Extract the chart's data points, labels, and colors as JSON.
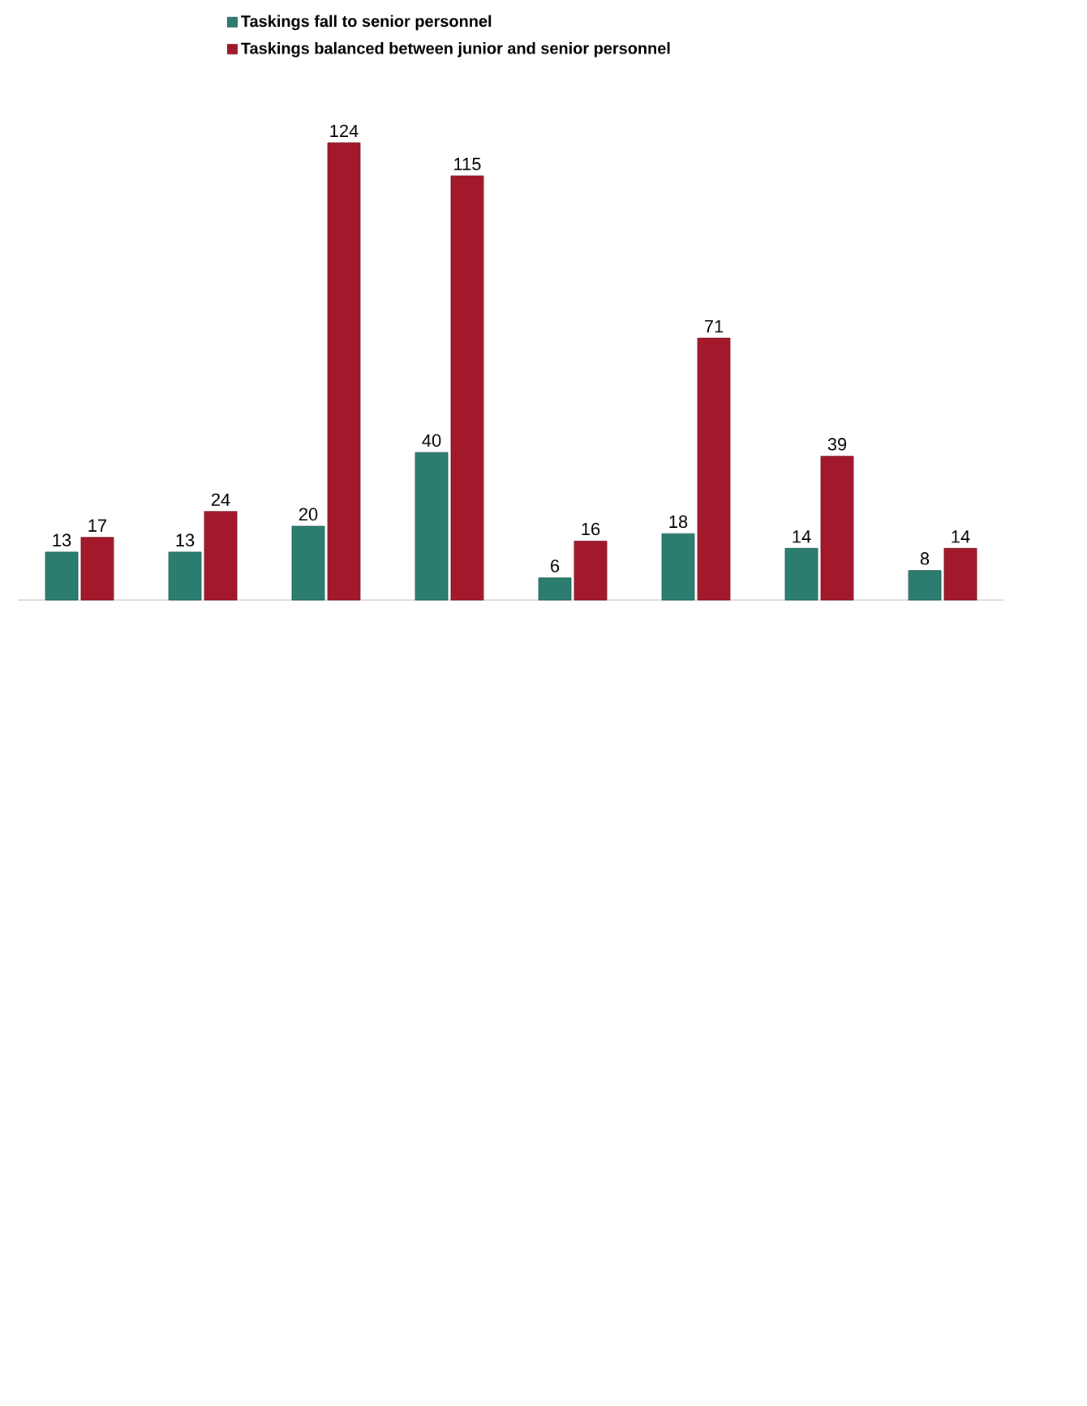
{
  "chart_data": {
    "type": "bar",
    "categories": [
      null,
      null,
      null,
      null,
      null,
      null,
      null,
      null
    ],
    "series": [
      {
        "name": "Taskings fall to senior personnel",
        "color": "#2b7d70",
        "values": [
          13,
          13,
          20,
          40,
          6,
          18,
          14,
          8
        ]
      },
      {
        "name": "Taskings balanced between junior and senior personnel",
        "color": "#a3182a",
        "values": [
          17,
          24,
          124,
          115,
          16,
          71,
          39,
          14
        ]
      }
    ],
    "data_labels": true,
    "legend": "top",
    "grid": false
  }
}
